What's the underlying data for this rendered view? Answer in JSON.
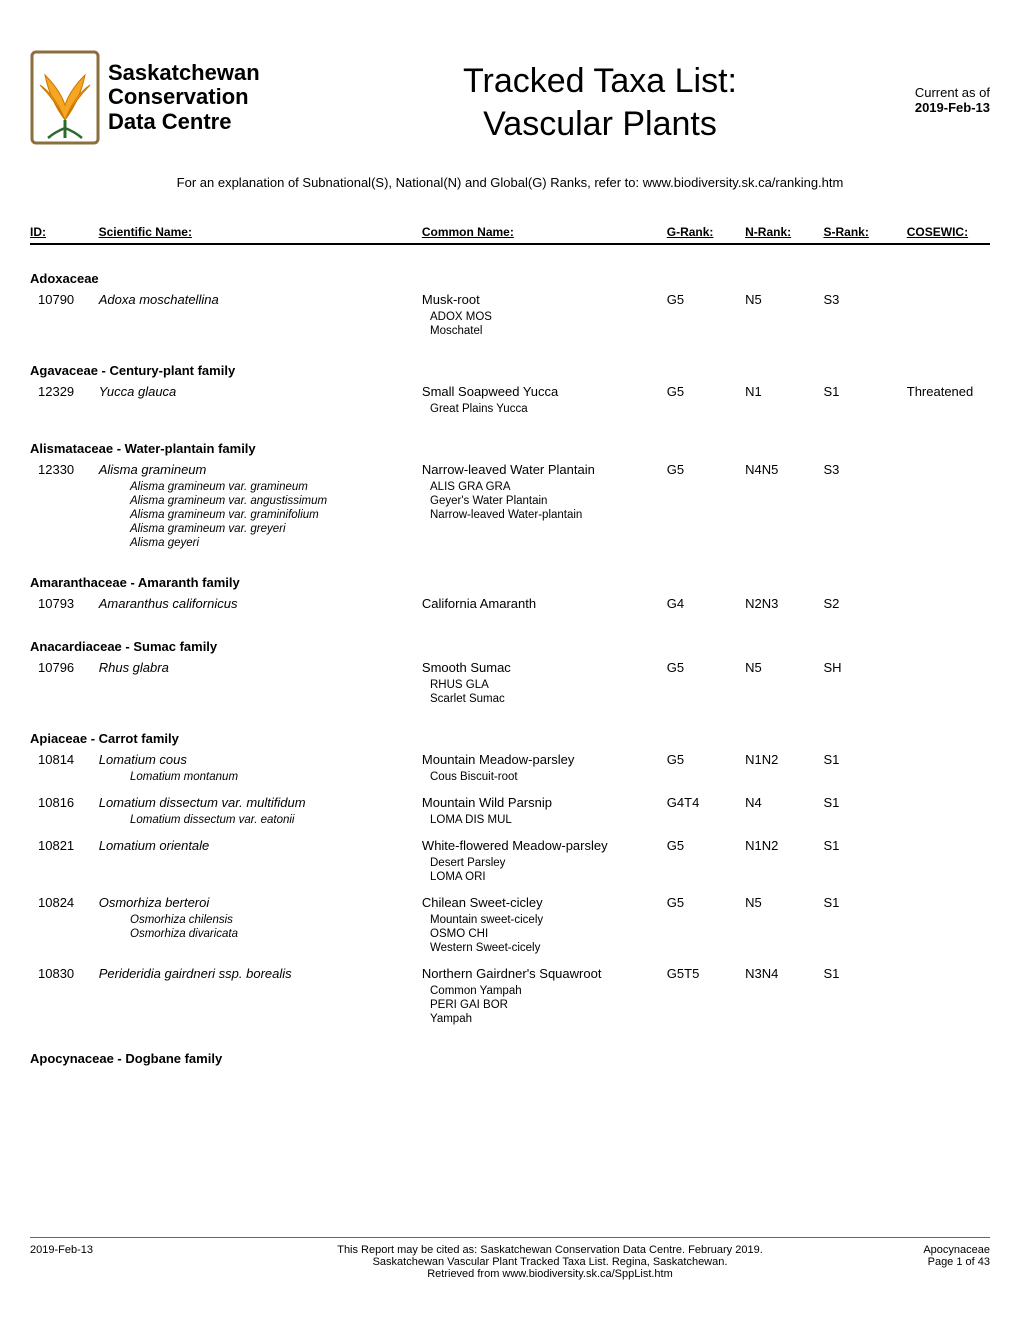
{
  "header": {
    "logo_line1": "Saskatchewan",
    "logo_line2": "Conservation",
    "logo_line3": "Data Centre",
    "title_line1": "Tracked Taxa List:",
    "title_line2": "Vascular Plants",
    "current_as_of_label": "Current as of",
    "current_date": "2019-Feb-13"
  },
  "explanation": "For an explanation of Subnational(S), National(N) and Global(G) Ranks, refer to: www.biodiversity.sk.ca/ranking.htm",
  "columns": {
    "id": "ID:",
    "sci": "Scientific Name:",
    "common": "Common Name:",
    "grank": "G-Rank:",
    "nrank": "N-Rank:",
    "srank": "S-Rank:",
    "cosewic": "COSEWIC:"
  },
  "families": [
    {
      "name": "Adoxaceae",
      "taxa": [
        {
          "id": "10790",
          "sci": "Adoxa moschatellina",
          "common": "Musk-root",
          "grank": "G5",
          "nrank": "N5",
          "srank": "S3",
          "cosewic": "",
          "sub_sci": [],
          "sub_common": [
            "ADOX MOS",
            "Moschatel"
          ]
        }
      ]
    },
    {
      "name": "Agavaceae - Century-plant family",
      "taxa": [
        {
          "id": "12329",
          "sci": "Yucca glauca",
          "common": "Small Soapweed Yucca",
          "grank": "G5",
          "nrank": "N1",
          "srank": "S1",
          "cosewic": "Threatened",
          "sub_sci": [],
          "sub_common": [
            "Great Plains Yucca"
          ]
        }
      ]
    },
    {
      "name": "Alismataceae - Water-plantain family",
      "taxa": [
        {
          "id": "12330",
          "sci": "Alisma gramineum",
          "common": "Narrow-leaved Water Plantain",
          "grank": "G5",
          "nrank": "N4N5",
          "srank": "S3",
          "cosewic": "",
          "sub_sci": [
            "Alisma gramineum var. gramineum",
            "Alisma gramineum var. angustissimum",
            "Alisma gramineum var. graminifolium",
            "Alisma gramineum var. greyeri",
            "Alisma geyeri"
          ],
          "sub_common": [
            "ALIS GRA GRA",
            "Geyer's Water Plantain",
            "Narrow-leaved Water-plantain"
          ]
        }
      ]
    },
    {
      "name": "Amaranthaceae - Amaranth family",
      "taxa": [
        {
          "id": "10793",
          "sci": "Amaranthus californicus",
          "common": "California Amaranth",
          "grank": "G4",
          "nrank": "N2N3",
          "srank": "S2",
          "cosewic": "",
          "sub_sci": [],
          "sub_common": []
        }
      ]
    },
    {
      "name": "Anacardiaceae - Sumac family",
      "taxa": [
        {
          "id": "10796",
          "sci": "Rhus glabra",
          "common": "Smooth Sumac",
          "grank": "G5",
          "nrank": "N5",
          "srank": "SH",
          "cosewic": "",
          "sub_sci": [],
          "sub_common": [
            "RHUS GLA",
            "Scarlet Sumac"
          ]
        }
      ]
    },
    {
      "name": "Apiaceae - Carrot family",
      "taxa": [
        {
          "id": "10814",
          "sci": "Lomatium cous",
          "common": "Mountain Meadow-parsley",
          "grank": "G5",
          "nrank": "N1N2",
          "srank": "S1",
          "cosewic": "",
          "sub_sci": [
            "Lomatium montanum"
          ],
          "sub_common": [
            "Cous Biscuit-root"
          ]
        },
        {
          "id": "10816",
          "sci": "Lomatium dissectum var. multifidum",
          "common": "Mountain Wild Parsnip",
          "grank": "G4T4",
          "nrank": "N4",
          "srank": "S1",
          "cosewic": "",
          "sub_sci": [
            "Lomatium dissectum var. eatonii"
          ],
          "sub_common": [
            "LOMA DIS MUL"
          ]
        },
        {
          "id": "10821",
          "sci": "Lomatium orientale",
          "common": "White-flowered Meadow-parsley",
          "grank": "G5",
          "nrank": "N1N2",
          "srank": "S1",
          "cosewic": "",
          "sub_sci": [],
          "sub_common": [
            "Desert Parsley",
            "LOMA ORI"
          ]
        },
        {
          "id": "10824",
          "sci": "Osmorhiza berteroi",
          "common": "Chilean Sweet-cicley",
          "grank": "G5",
          "nrank": "N5",
          "srank": "S1",
          "cosewic": "",
          "sub_sci": [
            "Osmorhiza chilensis",
            "Osmorhiza divaricata"
          ],
          "sub_common": [
            "Mountain sweet-cicely",
            "OSMO CHI",
            "Western Sweet-cicely"
          ]
        },
        {
          "id": "10830",
          "sci": "Perideridia gairdneri ssp. borealis",
          "common": "Northern Gairdner's Squawroot",
          "grank": "G5T5",
          "nrank": "N3N4",
          "srank": "S1",
          "cosewic": "",
          "sub_sci": [],
          "sub_common": [
            "Common Yampah",
            "PERI GAI BOR",
            "Yampah"
          ]
        }
      ]
    },
    {
      "name": "Apocynaceae - Dogbane family",
      "taxa": []
    }
  ],
  "footer": {
    "left_date": "2019-Feb-13",
    "center_line1": "This Report may be cited as: Saskatchewan Conservation Data Centre. February 2019.",
    "center_line2": "Saskatchewan Vascular Plant Tracked Taxa List. Regina, Saskatchewan.",
    "center_line3": "Retrieved from www.biodiversity.sk.ca/SppList.htm",
    "right_family": "Apocynaceae",
    "right_page": "Page 1 of 43"
  },
  "colors": {
    "text": "#000000",
    "background": "#ffffff",
    "border": "#000000",
    "footer_border": "#666666",
    "logo_petal": "#f5a623",
    "logo_leaf": "#2d6a2d",
    "logo_frame": "#8b6f3e"
  }
}
